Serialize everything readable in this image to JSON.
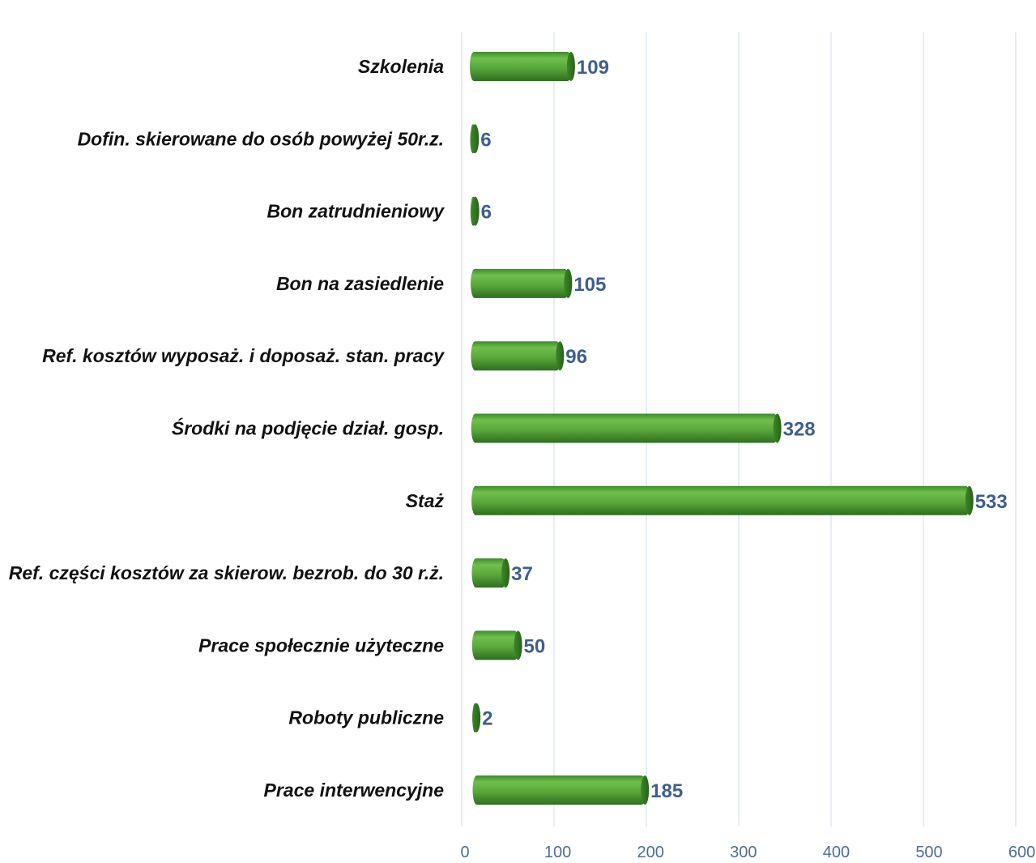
{
  "chart_data": {
    "type": "bar",
    "orientation": "horizontal",
    "style": "3d-cylinder",
    "bar_color": "#5fab3f",
    "value_label_color": "#3e5f8e",
    "axis_label_color": "#4f6d96",
    "categories": [
      "Szkolenia",
      "Dofin. skierowane do osób powyżej 50r.z.",
      "Bon zatrudnieniowy",
      "Bon na zasiedlenie",
      "Ref. kosztów wyposaż. i doposaż. stan. pracy",
      "Środki na podjęcie dział. gosp.",
      "Staż",
      "Ref. części kosztów za skierow. bezrob. do 30 r.ż.",
      "Prace społecznie użyteczne",
      "Roboty publiczne",
      "Prace interwencyjne"
    ],
    "values": [
      109,
      6,
      6,
      105,
      96,
      328,
      533,
      37,
      50,
      2,
      185
    ],
    "data_labels": [
      "109",
      "6",
      "6",
      "105",
      "96",
      "328",
      "533",
      "37",
      "50",
      "2",
      "185"
    ],
    "x_ticks": [
      "0",
      "100",
      "200",
      "300",
      "400",
      "500",
      "600"
    ],
    "xlim": [
      0,
      600
    ],
    "grid": true,
    "legend": "none"
  }
}
